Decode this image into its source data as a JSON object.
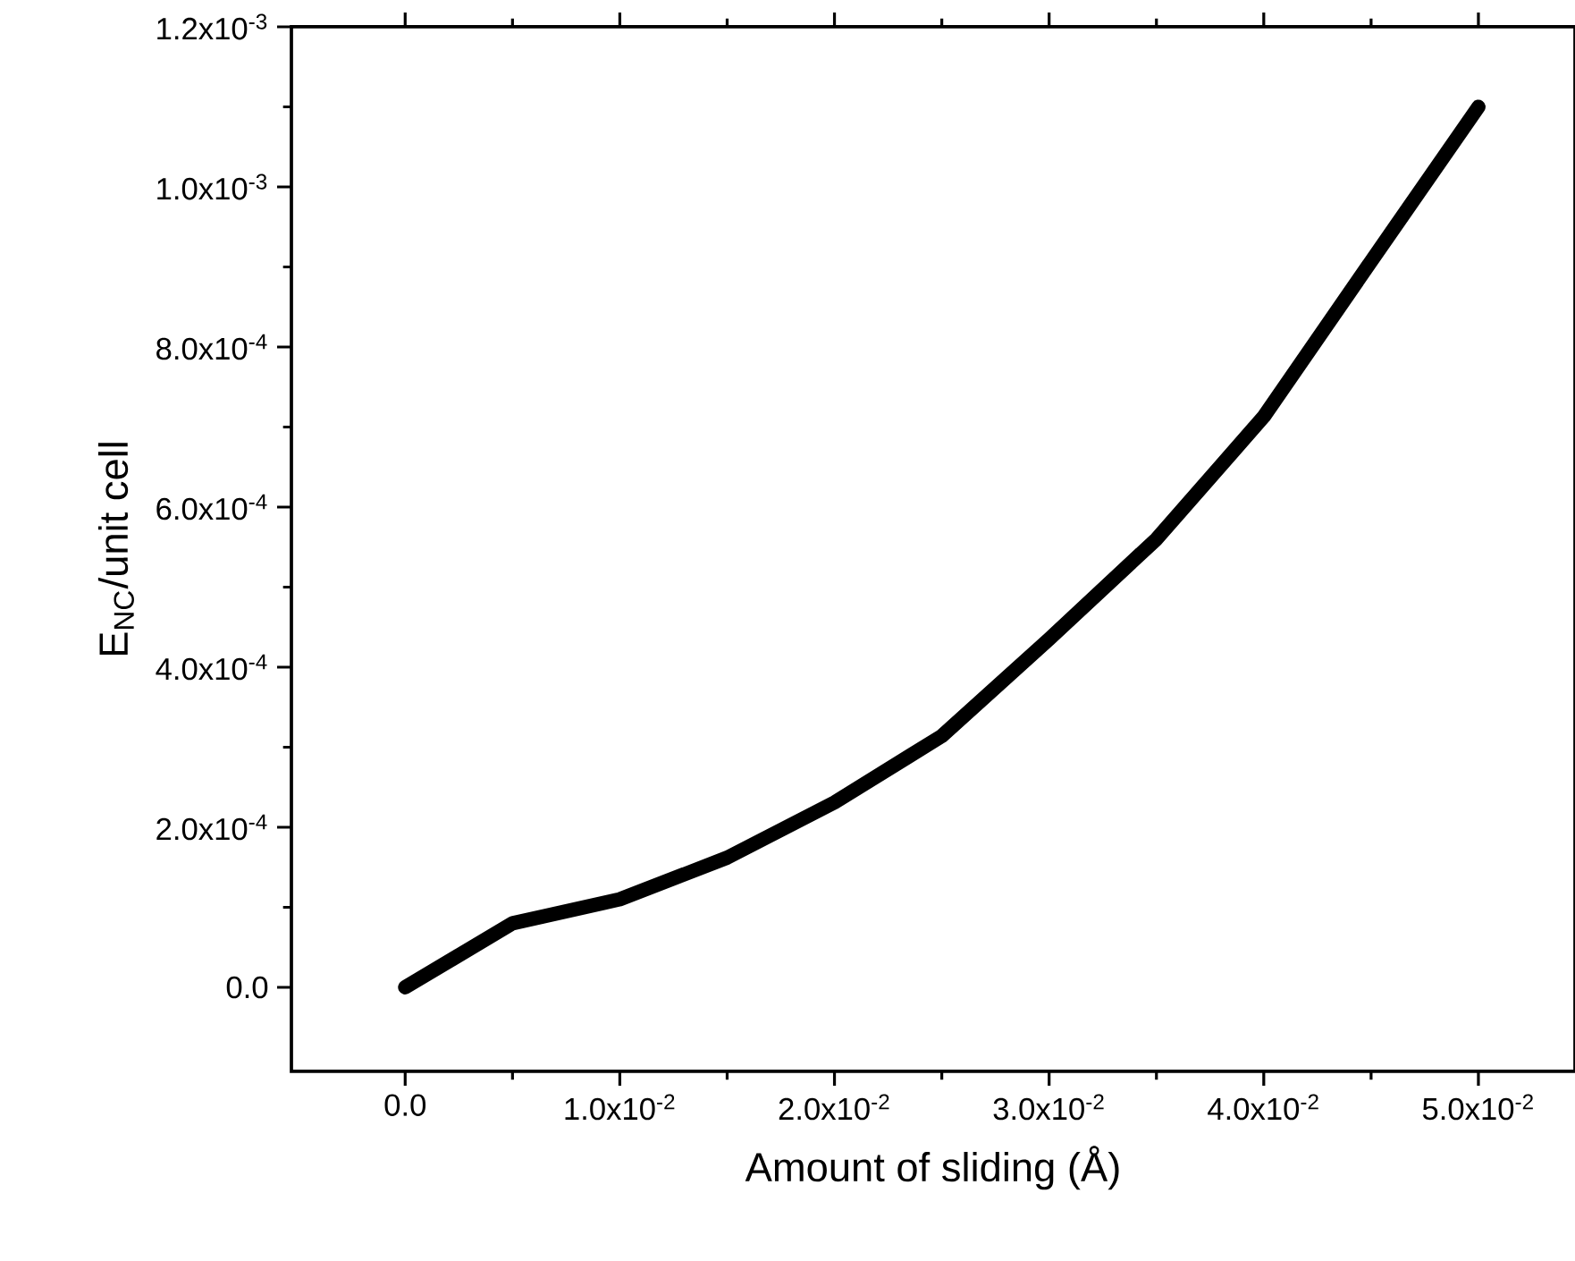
{
  "chart_data": {
    "type": "line",
    "xlabel": "Amount of sliding (Å)",
    "ylabel": "E$_{NC}$/unit cell",
    "x": [
      0,
      0.005,
      0.01,
      0.015,
      0.02,
      0.025,
      0.03,
      0.035,
      0.04,
      0.045,
      0.05
    ],
    "series": [
      {
        "color": "#000000",
        "values": [
          0,
          8e-05,
          0.00011,
          0.000162,
          0.000231,
          0.000314,
          0.000435,
          0.00056,
          0.000713,
          0.000907,
          0.0011
        ]
      }
    ],
    "xlim": [
      -0.0053,
      0.0545
    ],
    "ylim": [
      -0.000105,
      0.0012
    ],
    "xticks": [
      {
        "value": 0,
        "label": "0.0"
      },
      {
        "value": 0.01,
        "label": "1.0x10$^{-2}$"
      },
      {
        "value": 0.02,
        "label": "2.0x10$^{-2}$"
      },
      {
        "value": 0.03,
        "label": "3.0x10$^{-2}$"
      },
      {
        "value": 0.04,
        "label": "4.0x10$^{-2}$"
      },
      {
        "value": 0.05,
        "label": "5.0x10$^{-2}$"
      }
    ],
    "yticks": [
      {
        "value": 0,
        "label": "0.0"
      },
      {
        "value": 0.0002,
        "label": "2.0x10$^{-4}$"
      },
      {
        "value": 0.0004,
        "label": "4.0x10$^{-4}$"
      },
      {
        "value": 0.0006,
        "label": "6.0x10$^{-4}$"
      },
      {
        "value": 0.0008,
        "label": "8.0x10$^{-4}$"
      },
      {
        "value": 0.001,
        "label": "1.0x10$^{-3}$"
      },
      {
        "value": 0.0012,
        "label": "1.2x10$^{-3}$"
      }
    ],
    "marker": "none",
    "line_style": "solid"
  }
}
